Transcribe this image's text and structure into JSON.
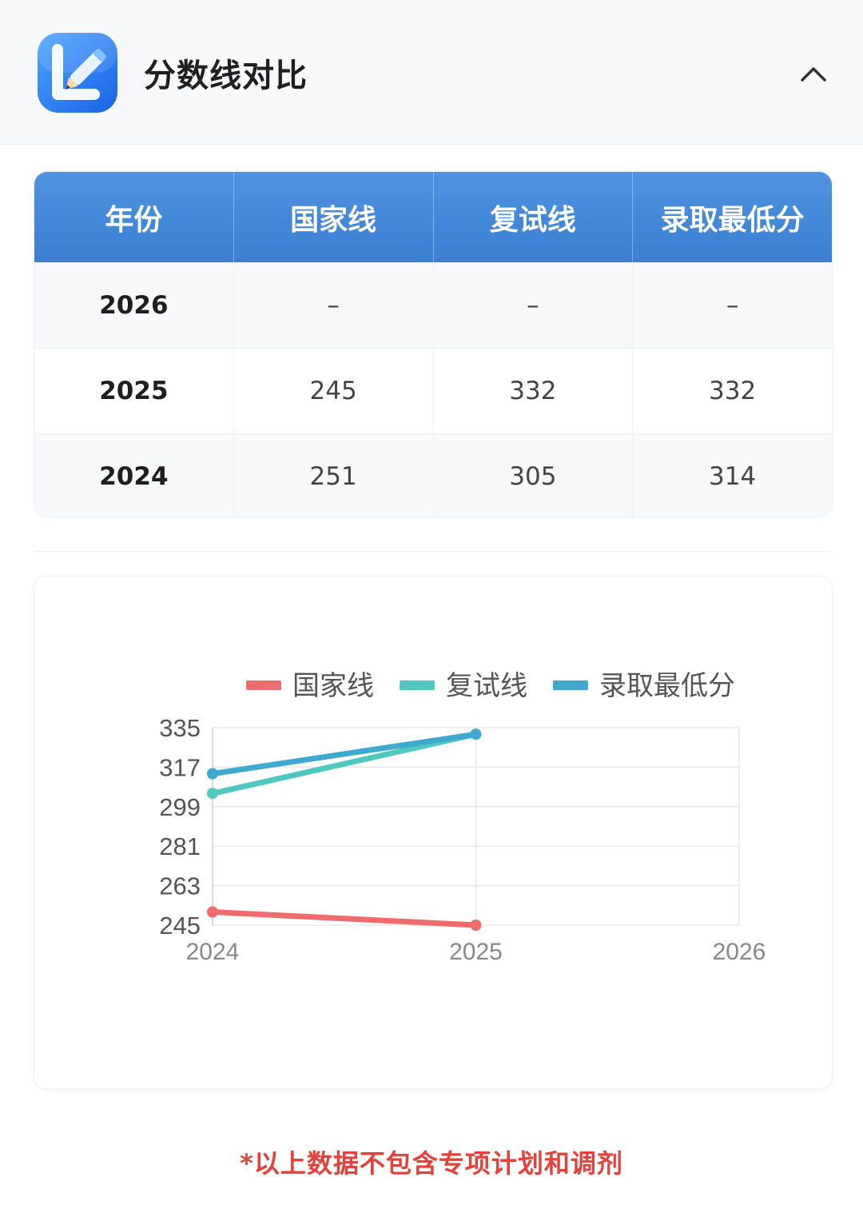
{
  "header": {
    "title": "分数线对比",
    "icon": "pencil-l-app-icon",
    "collapse_icon": "chevron-up-icon"
  },
  "table": {
    "columns": [
      "年份",
      "国家线",
      "复试线",
      "录取最低分"
    ],
    "rows": [
      {
        "year": "2026",
        "national": "–",
        "retest": "–",
        "min_admit": "–"
      },
      {
        "year": "2025",
        "national": "245",
        "retest": "332",
        "min_admit": "332"
      },
      {
        "year": "2024",
        "national": "251",
        "retest": "305",
        "min_admit": "314"
      }
    ]
  },
  "chart_data": {
    "type": "line",
    "title": "",
    "xlabel": "",
    "ylabel": "",
    "categories": [
      "2024",
      "2025",
      "2026"
    ],
    "ylim": [
      245,
      335
    ],
    "yticks": [
      "245",
      "263",
      "281",
      "299",
      "317",
      "335"
    ],
    "grid": true,
    "legend_position": "top",
    "series": [
      {
        "name": "国家线",
        "color": "#f06b6e",
        "values": [
          251,
          245,
          null
        ]
      },
      {
        "name": "复试线",
        "color": "#4fc8c0",
        "values": [
          305,
          332,
          null
        ]
      },
      {
        "name": "录取最低分",
        "color": "#3fa9cf",
        "values": [
          314,
          332,
          null
        ]
      }
    ]
  },
  "footnote": "*以上数据不包含专项计划和调剂"
}
